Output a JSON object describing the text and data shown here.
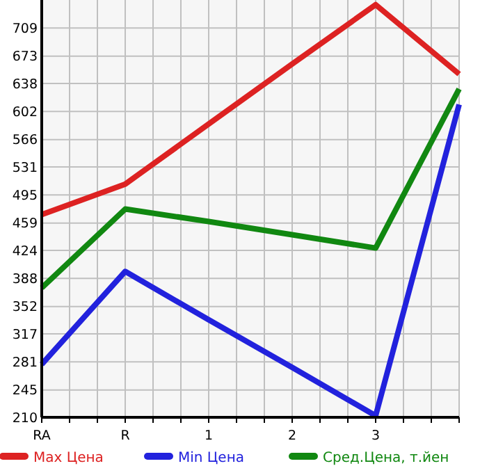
{
  "chart_data": {
    "type": "line",
    "categories": [
      "RA",
      "R",
      "1",
      "2",
      "3",
      null
    ],
    "series": [
      {
        "name": "Max Цена",
        "color": "#dd2222",
        "values": [
          470,
          509,
          586,
          663,
          739,
          650
        ]
      },
      {
        "name": "Min Цена",
        "color": "#2222dd",
        "values": [
          278,
          397,
          335,
          274,
          212,
          611
        ]
      },
      {
        "name": "Сред.Цена, т.йен",
        "color": "#118811",
        "values": [
          376,
          477,
          461,
          444,
          427,
          631
        ]
      }
    ],
    "ylim": [
      210,
      745
    ],
    "yticks": [
      210,
      245,
      281,
      317,
      352,
      388,
      424,
      459,
      495,
      531,
      566,
      602,
      638,
      673,
      709
    ],
    "grid": true,
    "legend": "bottom",
    "marker": "none",
    "line_style": "solid"
  }
}
